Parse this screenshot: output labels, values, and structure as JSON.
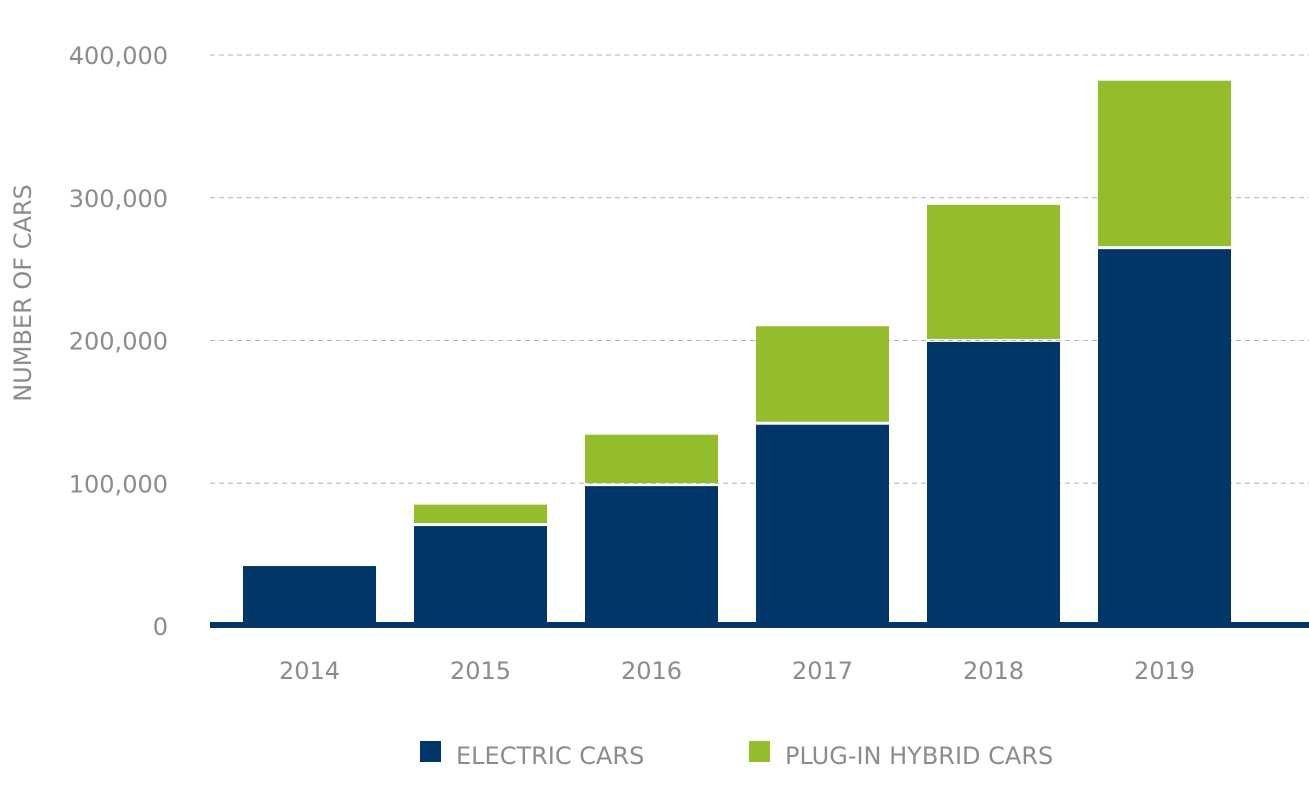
{
  "chart_data": {
    "type": "bar",
    "stacked": true,
    "categories": [
      "2014",
      "2015",
      "2016",
      "2017",
      "2018",
      "2019"
    ],
    "series": [
      {
        "name": "ELECTRIC CARS",
        "color": "#003768",
        "values": [
          42000,
          70000,
          98000,
          141000,
          199000,
          264000
        ]
      },
      {
        "name": "PLUG-IN HYBRID CARS",
        "color": "#93bd2b",
        "values": [
          0,
          15000,
          36000,
          69000,
          96000,
          118000
        ]
      }
    ],
    "title": "",
    "xlabel": "",
    "ylabel": "NUMBER OF CARS",
    "ylim": [
      0,
      400000
    ],
    "yticks": [
      0,
      100000,
      200000,
      300000,
      400000
    ],
    "ytick_labels": [
      "0",
      "100,000",
      "200,000",
      "300,000",
      "400,000"
    ],
    "grid": "horizontal dashed",
    "legend_position": "bottom-center",
    "axis_color": "#003768",
    "grid_color": "#b3b3b3"
  }
}
